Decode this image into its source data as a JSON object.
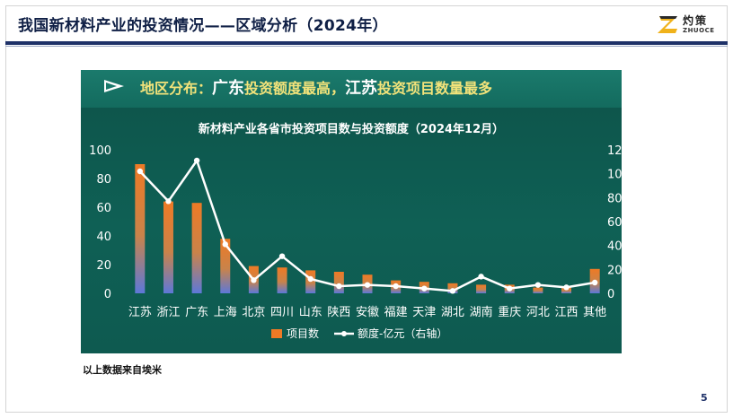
{
  "header": {
    "title": "我国新材料产业的投资情况——区域分析（2024年）",
    "logo": {
      "cn": "灼策",
      "en": "ZHUOCE"
    }
  },
  "banner": {
    "part1": "地区分布：",
    "part2": "广东",
    "part3": "投资额度最高，",
    "part4": "江苏",
    "part5": "投资项目数量最多"
  },
  "source_note": "以上数据来自埃米",
  "page_number": "5",
  "colors": {
    "panel_bg": "#0f5d52",
    "bar_top": "#ee7a25",
    "bar_bottom": "#5d78d8",
    "line": "#ffffff",
    "banner_text": "#f3e37a",
    "title_rule": "#1e3168"
  },
  "chart_data": {
    "type": "bar",
    "title": "新材料产业各省市投资项目数与投资额度（2024年12月）",
    "categories": [
      "江苏",
      "浙江",
      "广东",
      "上海",
      "北京",
      "四川",
      "山东",
      "陕西",
      "安徽",
      "福建",
      "天津",
      "湖北",
      "湖南",
      "重庆",
      "河北",
      "江西",
      "其他"
    ],
    "series": [
      {
        "name": "项目数",
        "type": "bar",
        "axis": "left",
        "values": [
          90,
          64,
          63,
          38,
          19,
          18,
          16,
          15,
          13,
          9,
          8,
          7,
          6,
          6,
          4,
          4,
          17
        ]
      },
      {
        "name": "额度-亿元（右轴）",
        "type": "line",
        "axis": "right",
        "values": [
          102,
          77,
          111,
          41,
          11,
          31,
          12,
          6,
          7,
          6,
          4,
          2,
          14,
          4,
          7,
          5,
          9
        ]
      }
    ],
    "y_left": {
      "min": 0,
      "max": 100,
      "ticks": [
        0,
        20,
        40,
        60,
        80,
        100
      ]
    },
    "y_right": {
      "min": 0,
      "max": 120,
      "ticks": [
        0,
        20,
        40,
        60,
        80,
        100,
        120
      ]
    },
    "legend": {
      "position": "bottom"
    },
    "grid": false
  }
}
